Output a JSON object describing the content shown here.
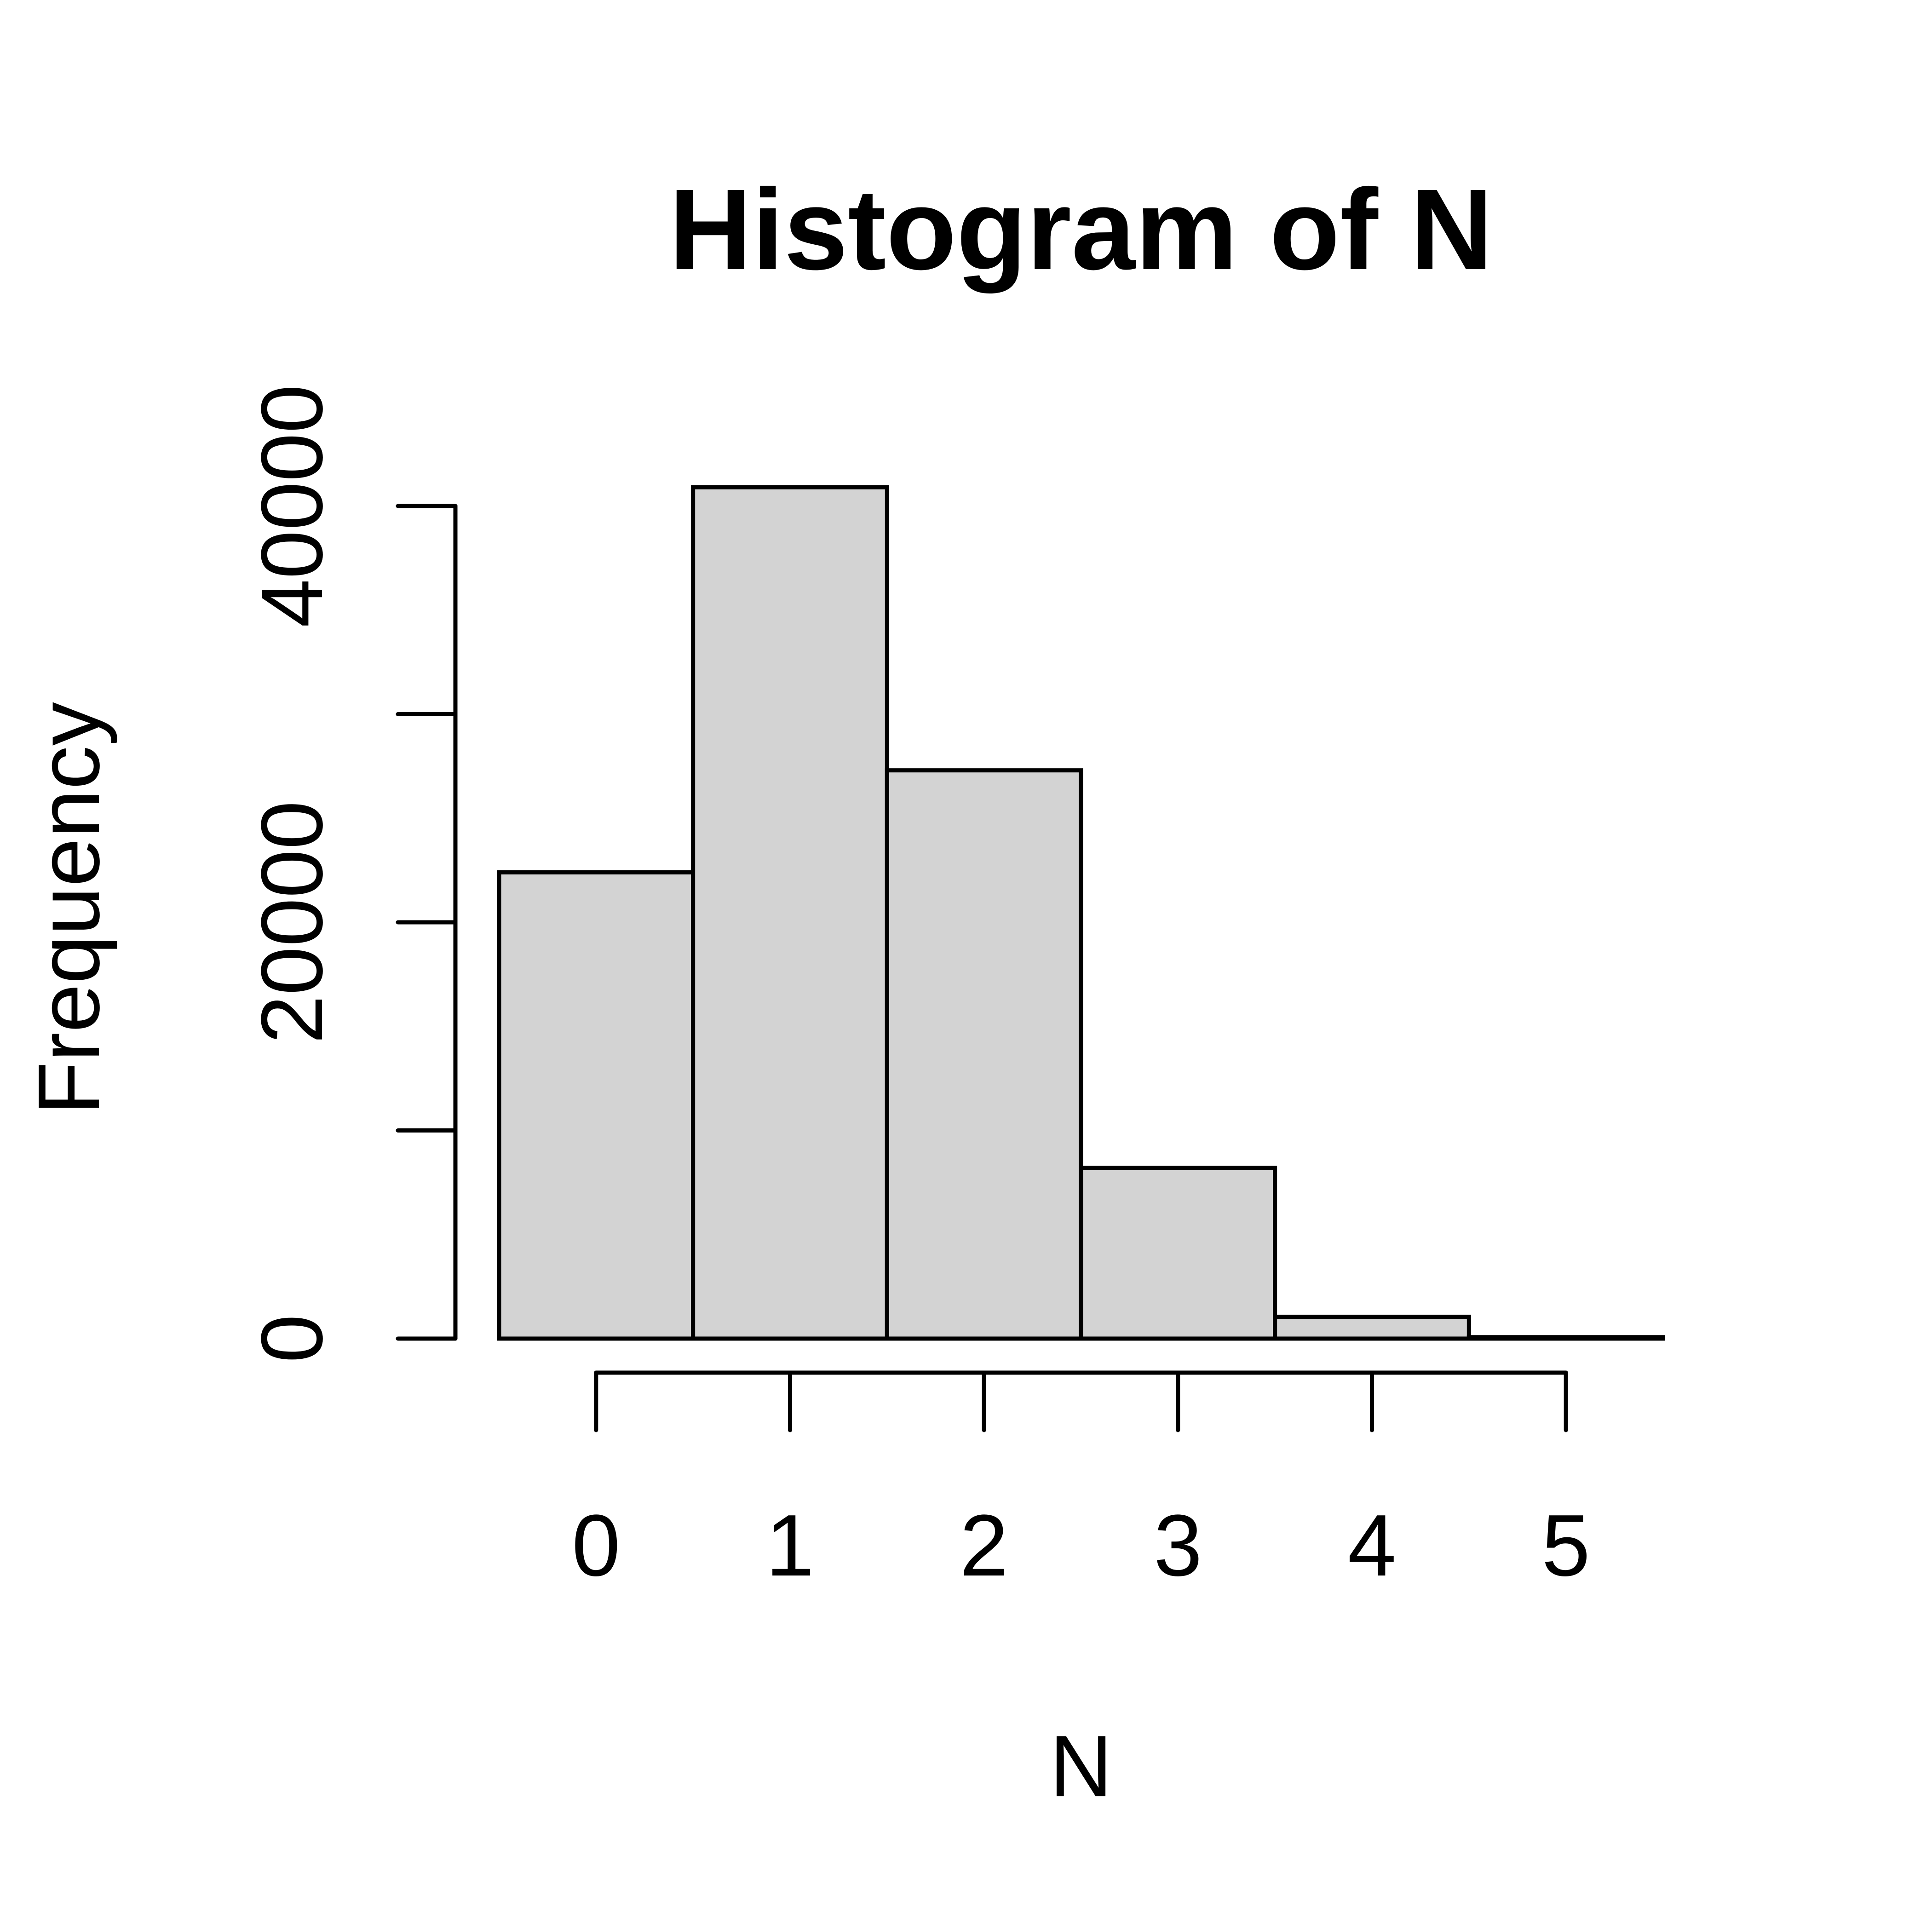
{
  "chart_data": {
    "type": "bar",
    "title": "Histogram of N",
    "xlabel": "N",
    "ylabel": "Frequency",
    "bin_edges": [
      -0.5,
      0.5,
      1.5,
      2.5,
      3.5,
      4.5,
      5.5
    ],
    "categories": [
      "0",
      "1",
      "2",
      "3",
      "4",
      "5"
    ],
    "values": [
      22400,
      40900,
      27300,
      8200,
      1050,
      70
    ],
    "xlim": [
      -0.5,
      5.5
    ],
    "ylim": [
      0,
      40000
    ],
    "x_ticks": [
      0,
      1,
      2,
      3,
      4,
      5
    ],
    "x_tick_labels": [
      "0",
      "1",
      "2",
      "3",
      "4",
      "5"
    ],
    "y_ticks": [
      0,
      10000,
      20000,
      30000,
      40000
    ],
    "y_tick_labels": [
      "0",
      "",
      "20000",
      "",
      "40000"
    ],
    "grid": false,
    "legend": "none"
  },
  "colors": {
    "bar_fill": "#d3d3d3",
    "bar_stroke": "#000000",
    "axis": "#000000",
    "background": "#ffffff"
  }
}
